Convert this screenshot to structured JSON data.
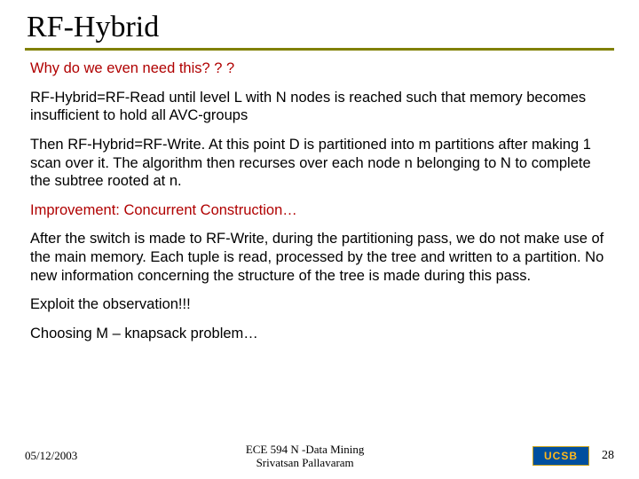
{
  "title": "RF-Hybrid",
  "p1": "Why do we even need this? ? ?",
  "p2": "RF-Hybrid=RF-Read until level L with N nodes is reached such that memory becomes insufficient to hold all AVC-groups",
  "p3": "Then RF-Hybrid=RF-Write.  At this point D is partitioned into m partitions after making 1 scan over it.  The algorithm then recurses over each node n belonging to N to complete the subtree rooted at n.",
  "p4": "Improvement: Concurrent Construction…",
  "p5": "After the switch is made to RF-Write, during the partitioning pass, we do not make use of the main memory.  Each tuple is read, processed by the tree and written to a partition.  No new information concerning the structure of the tree is made during this pass.",
  "p6": "Exploit the observation!!!",
  "p7": "Choosing M – knapsack problem…",
  "footer": {
    "date": "05/12/2003",
    "center_line1": "ECE 594 N -Data Mining",
    "center_line2": "Srivatsan Pallavaram",
    "logo_text": "UCSB",
    "page_number": "28"
  },
  "colors": {
    "accent_line": "#808000",
    "red_text": "#b00000",
    "logo_bg": "#004f9e",
    "logo_fg": "#ffb81c"
  }
}
